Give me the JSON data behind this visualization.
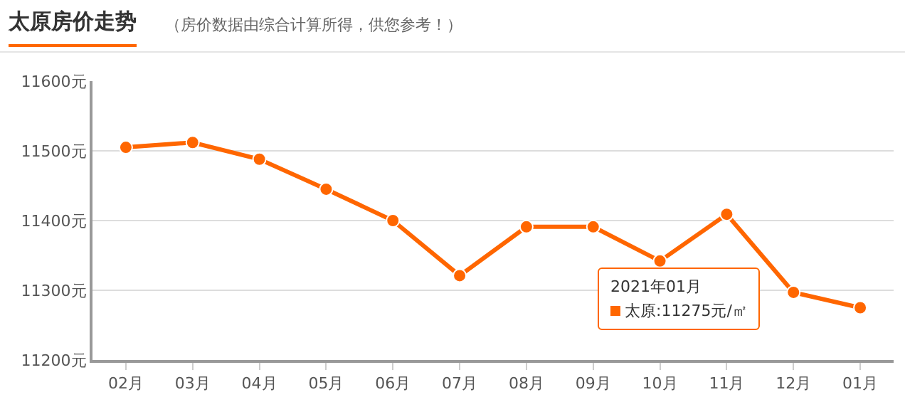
{
  "chart_data": {
    "type": "line",
    "title": "太原房价走势",
    "subtitle": "（房价数据由综合计算所得，供您参考！）",
    "categories": [
      "02月",
      "03月",
      "04月",
      "05月",
      "06月",
      "07月",
      "08月",
      "09月",
      "10月",
      "11月",
      "12月",
      "01月"
    ],
    "series": [
      {
        "color": "#ff6600",
        "values": [
          11505,
          11512,
          11488,
          11445,
          11400,
          11321,
          11391,
          11391,
          11342,
          11409,
          11297,
          11275
        ]
      }
    ],
    "ylim": [
      11200,
      11600
    ],
    "yticks": [
      {
        "value": 11200,
        "label": "11200元"
      },
      {
        "value": 11300,
        "label": "11300元"
      },
      {
        "value": 11400,
        "label": "11400元"
      },
      {
        "value": 11500,
        "label": "11500元"
      },
      {
        "value": 11600,
        "label": "11600元"
      }
    ],
    "annotations": [
      "2021年01月",
      "太原:11275元/㎡"
    ],
    "grid": "y",
    "legend": false,
    "marker": "circle",
    "line_style": "solid"
  }
}
